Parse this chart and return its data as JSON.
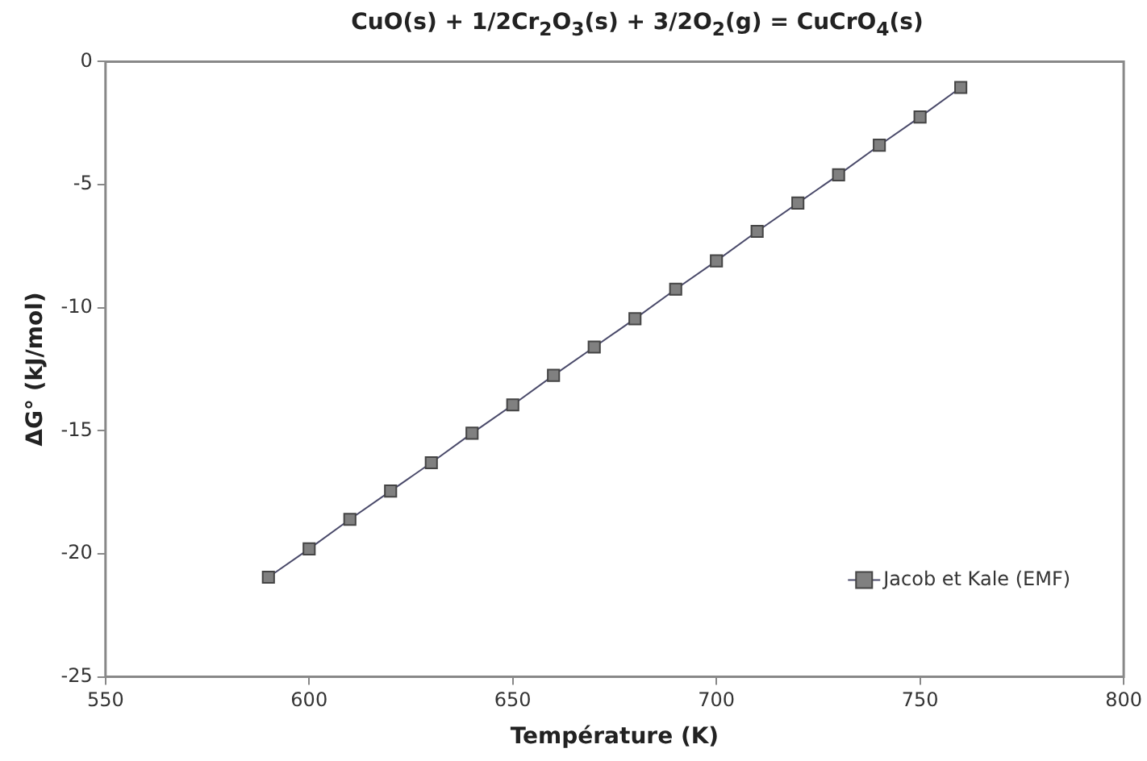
{
  "chart_data": {
    "type": "line",
    "title": "CuO(s) + 1/2Cr$_{2}$O$_{3}$(s) + 3/2O$_{2}$(g) = CuCrO$_{4}$(s)",
    "xlabel": "Température (K)",
    "ylabel": "ΔG° (kJ/mol)",
    "x": [
      590,
      600,
      610,
      620,
      630,
      640,
      650,
      660,
      670,
      680,
      690,
      700,
      710,
      720,
      730,
      740,
      750,
      760
    ],
    "series": [
      {
        "name": "Jacob et Kale (EMF)",
        "color": "#808080",
        "values": [
          -20.95,
          -19.8,
          -18.6,
          -17.45,
          -16.3,
          -15.1,
          -13.95,
          -12.75,
          -11.6,
          -10.45,
          -9.25,
          -8.1,
          -6.9,
          -5.75,
          -4.6,
          -3.4,
          -2.25,
          -1.05
        ]
      }
    ],
    "xlim": [
      550,
      800
    ],
    "xticks": [
      550,
      600,
      650,
      700,
      750,
      800
    ],
    "ylim": [
      -25,
      0
    ],
    "yticks": [
      -25,
      -20,
      -15,
      -10,
      -5,
      0
    ],
    "grid": false,
    "legend": "bottom right",
    "marker": "square",
    "line_style": "solid"
  }
}
